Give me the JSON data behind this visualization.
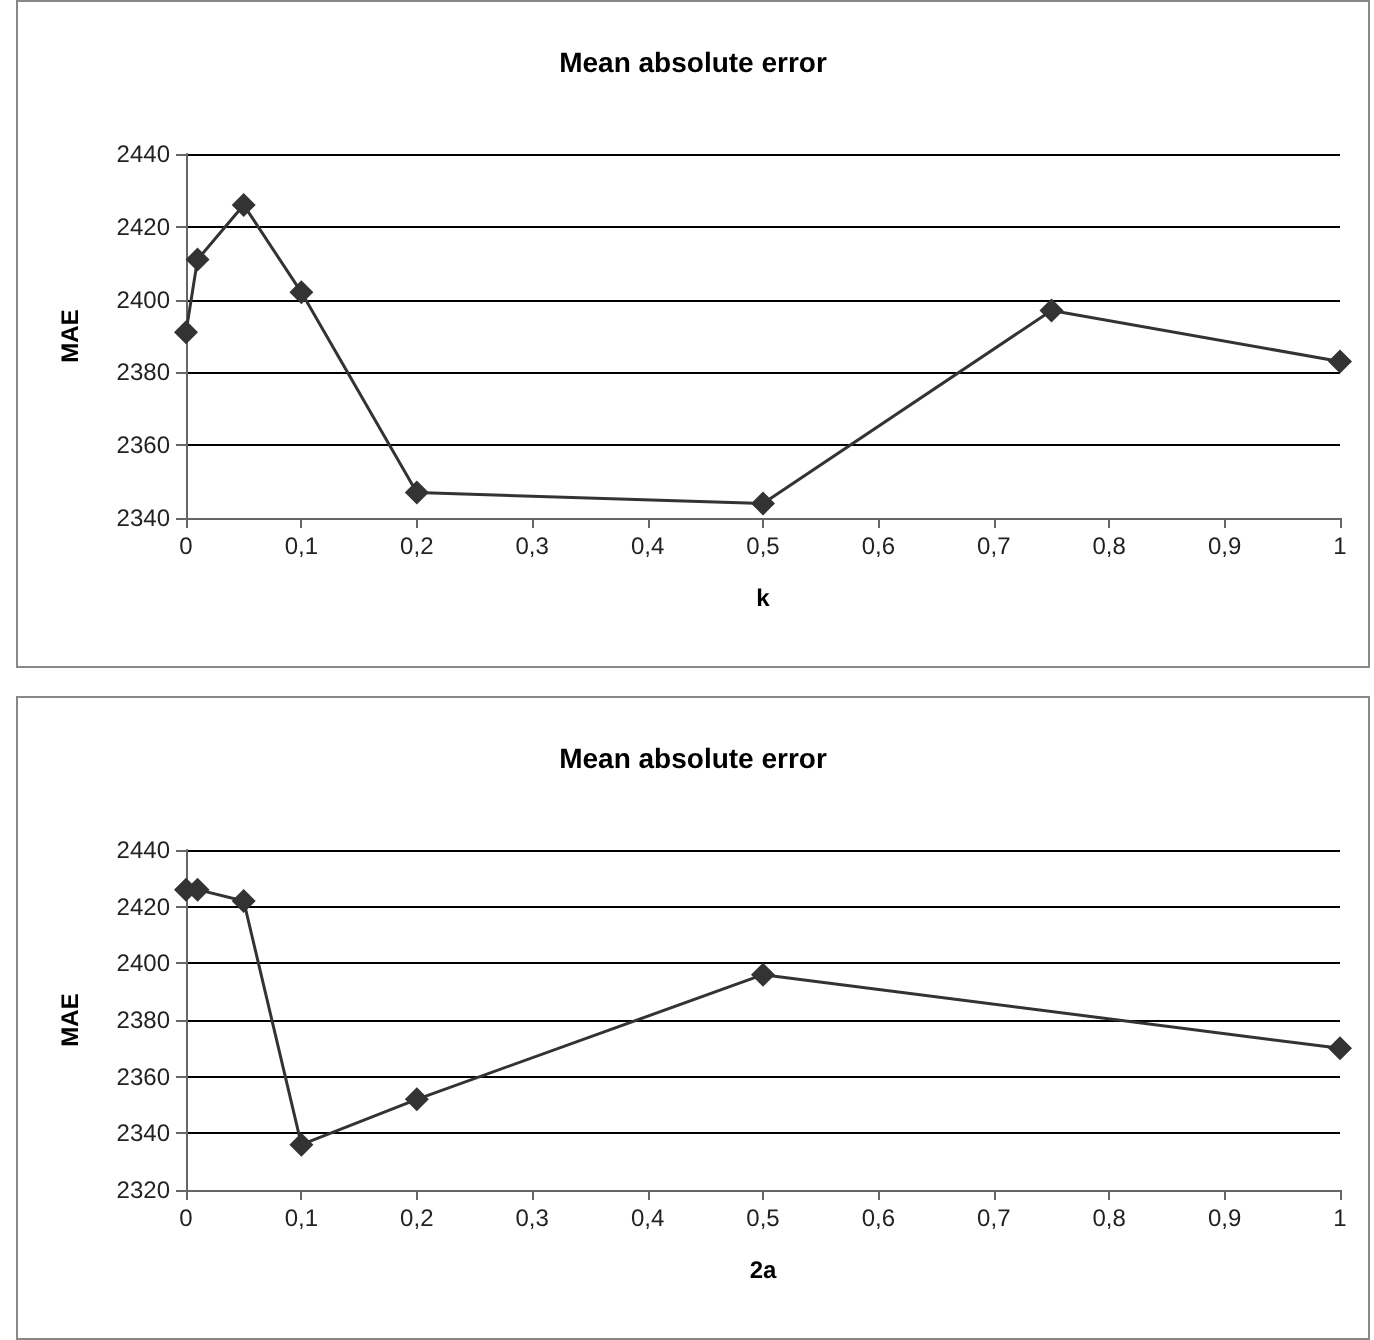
{
  "chart_data": [
    {
      "type": "line",
      "title": "Mean absolute error",
      "xlabel": "k",
      "ylabel": "MAE",
      "x": [
        0,
        0.01,
        0.05,
        0.1,
        0.2,
        0.5,
        0.75,
        1
      ],
      "series": [
        {
          "color": "#333333",
          "values": [
            2391,
            2411,
            2426,
            2402,
            2347,
            2344,
            2397,
            2383
          ]
        }
      ],
      "xlim": [
        0,
        1
      ],
      "xticks": [
        {
          "value": 0,
          "label": "0"
        },
        {
          "value": 0.1,
          "label": "0,1"
        },
        {
          "value": 0.2,
          "label": "0,2"
        },
        {
          "value": 0.3,
          "label": "0,3"
        },
        {
          "value": 0.4,
          "label": "0,4"
        },
        {
          "value": 0.5,
          "label": "0,5"
        },
        {
          "value": 0.6,
          "label": "0,6"
        },
        {
          "value": 0.7,
          "label": "0,7"
        },
        {
          "value": 0.8,
          "label": "0,8"
        },
        {
          "value": 0.9,
          "label": "0,9"
        },
        {
          "value": 1,
          "label": "1"
        }
      ],
      "ylim": [
        2340,
        2440
      ],
      "yticks": [
        2340,
        2360,
        2380,
        2400,
        2420,
        2440
      ],
      "grid": "y",
      "marker": "diamond",
      "line_style": "solid"
    },
    {
      "type": "line",
      "title": "Mean absolute error",
      "xlabel": "2a",
      "ylabel": "MAE",
      "x": [
        0,
        0.01,
        0.05,
        0.1,
        0.2,
        0.5,
        1
      ],
      "series": [
        {
          "color": "#333333",
          "values": [
            2426,
            2426,
            2422,
            2336,
            2352,
            2396,
            2370
          ]
        }
      ],
      "xlim": [
        0,
        1
      ],
      "xticks": [
        {
          "value": 0,
          "label": "0"
        },
        {
          "value": 0.1,
          "label": "0,1"
        },
        {
          "value": 0.2,
          "label": "0,2"
        },
        {
          "value": 0.3,
          "label": "0,3"
        },
        {
          "value": 0.4,
          "label": "0,4"
        },
        {
          "value": 0.5,
          "label": "0,5"
        },
        {
          "value": 0.6,
          "label": "0,6"
        },
        {
          "value": 0.7,
          "label": "0,7"
        },
        {
          "value": 0.8,
          "label": "0,8"
        },
        {
          "value": 0.9,
          "label": "0,9"
        },
        {
          "value": 1,
          "label": "1"
        }
      ],
      "ylim": [
        2320,
        2440
      ],
      "yticks": [
        2320,
        2340,
        2360,
        2380,
        2400,
        2420,
        2440
      ],
      "grid": "y",
      "marker": "diamond",
      "line_style": "solid"
    }
  ]
}
